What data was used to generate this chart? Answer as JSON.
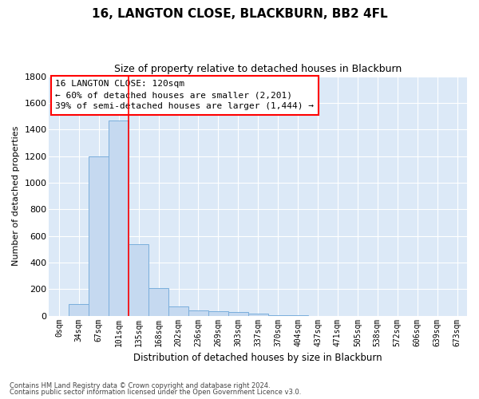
{
  "title1": "16, LANGTON CLOSE, BLACKBURN, BB2 4FL",
  "title2": "Size of property relative to detached houses in Blackburn",
  "xlabel": "Distribution of detached houses by size in Blackburn",
  "ylabel": "Number of detached properties",
  "bar_color": "#c5d9f0",
  "bar_edge_color": "#7aaedc",
  "categories": [
    "0sqm",
    "34sqm",
    "67sqm",
    "101sqm",
    "135sqm",
    "168sqm",
    "202sqm",
    "236sqm",
    "269sqm",
    "303sqm",
    "337sqm",
    "370sqm",
    "404sqm",
    "437sqm",
    "471sqm",
    "505sqm",
    "538sqm",
    "572sqm",
    "606sqm",
    "639sqm",
    "673sqm"
  ],
  "values": [
    0,
    85,
    1200,
    1470,
    535,
    205,
    70,
    40,
    35,
    25,
    15,
    5,
    2,
    0,
    0,
    0,
    0,
    0,
    0,
    0,
    0
  ],
  "ylim": [
    0,
    1800
  ],
  "yticks": [
    0,
    200,
    400,
    600,
    800,
    1000,
    1200,
    1400,
    1600,
    1800
  ],
  "vline_x": 3.5,
  "annotation_line1": "16 LANGTON CLOSE: 120sqm",
  "annotation_line2": "← 60% of detached houses are smaller (2,201)",
  "annotation_line3": "39% of semi-detached houses are larger (1,444) →",
  "footer_line1": "Contains HM Land Registry data © Crown copyright and database right 2024.",
  "footer_line2": "Contains public sector information licensed under the Open Government Licence v3.0.",
  "fig_bg_color": "#ffffff",
  "plot_bg_color": "#dce9f7"
}
